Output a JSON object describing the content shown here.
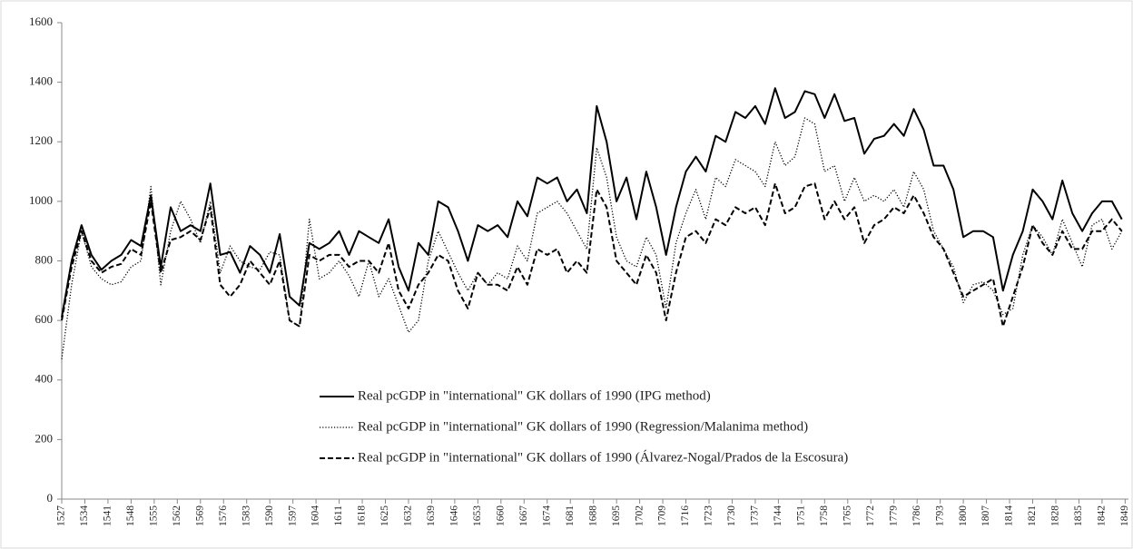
{
  "chart_data": {
    "type": "line",
    "xlim": [
      1527,
      1850
    ],
    "ylim": [
      0,
      1600
    ],
    "yticks": [
      0,
      200,
      400,
      600,
      800,
      1000,
      1200,
      1400,
      1600
    ],
    "xticks": [
      1527,
      1534,
      1541,
      1548,
      1555,
      1562,
      1569,
      1576,
      1583,
      1590,
      1597,
      1604,
      1611,
      1618,
      1625,
      1632,
      1639,
      1646,
      1653,
      1660,
      1667,
      1674,
      1681,
      1688,
      1695,
      1702,
      1709,
      1716,
      1723,
      1730,
      1737,
      1744,
      1751,
      1758,
      1765,
      1772,
      1779,
      1786,
      1793,
      1800,
      1807,
      1814,
      1821,
      1828,
      1835,
      1842,
      1849
    ],
    "legend": "lower center",
    "x": [
      1527,
      1530,
      1533,
      1536,
      1539,
      1542,
      1545,
      1548,
      1551,
      1554,
      1557,
      1560,
      1563,
      1566,
      1569,
      1572,
      1575,
      1578,
      1581,
      1584,
      1587,
      1590,
      1593,
      1596,
      1599,
      1602,
      1605,
      1608,
      1611,
      1614,
      1617,
      1620,
      1623,
      1626,
      1629,
      1632,
      1635,
      1638,
      1641,
      1644,
      1647,
      1650,
      1653,
      1656,
      1659,
      1662,
      1665,
      1668,
      1671,
      1674,
      1677,
      1680,
      1683,
      1686,
      1689,
      1692,
      1695,
      1698,
      1701,
      1704,
      1707,
      1710,
      1713,
      1716,
      1719,
      1722,
      1725,
      1728,
      1731,
      1734,
      1737,
      1740,
      1743,
      1746,
      1749,
      1752,
      1755,
      1758,
      1761,
      1764,
      1767,
      1770,
      1773,
      1776,
      1779,
      1782,
      1785,
      1788,
      1791,
      1794,
      1797,
      1800,
      1803,
      1806,
      1809,
      1812,
      1815,
      1818,
      1821,
      1824,
      1827,
      1830,
      1833,
      1836,
      1839,
      1842,
      1845,
      1848
    ],
    "series": [
      {
        "name": "Real pcGDP in \"international\" GK dollars of 1990 (IPG method)",
        "color": "#000000",
        "dash": "solid",
        "values": [
          610,
          800,
          920,
          820,
          770,
          800,
          820,
          870,
          850,
          1020,
          780,
          980,
          900,
          920,
          900,
          1060,
          820,
          830,
          760,
          850,
          820,
          760,
          890,
          680,
          650,
          860,
          840,
          860,
          900,
          820,
          900,
          880,
          860,
          940,
          780,
          700,
          860,
          820,
          1000,
          980,
          900,
          800,
          920,
          900,
          920,
          880,
          1000,
          950,
          1080,
          1060,
          1080,
          1000,
          1040,
          960,
          1320,
          1200,
          1000,
          1080,
          940,
          1100,
          980,
          820,
          980,
          1100,
          1150,
          1100,
          1220,
          1200,
          1300,
          1280,
          1320,
          1260,
          1380,
          1280,
          1300,
          1370,
          1360,
          1280,
          1360,
          1270,
          1280,
          1160,
          1210,
          1220,
          1260,
          1220,
          1310,
          1240,
          1120,
          1120,
          1040,
          880,
          900,
          900,
          880,
          700,
          820,
          900,
          1040,
          1000,
          940,
          1070,
          960,
          900,
          960,
          1000,
          1000,
          940
        ]
      },
      {
        "name": "Real pcGDP in \"international\" GK dollars of 1990 (Regression/Malanima method)",
        "color": "#000000",
        "dash": "dotted",
        "values": [
          470,
          720,
          900,
          780,
          740,
          720,
          730,
          780,
          800,
          1050,
          720,
          900,
          1000,
          940,
          860,
          1000,
          760,
          850,
          800,
          780,
          770,
          830,
          820,
          600,
          580,
          940,
          740,
          760,
          800,
          750,
          680,
          800,
          680,
          740,
          650,
          560,
          600,
          800,
          900,
          830,
          760,
          700,
          760,
          720,
          760,
          740,
          850,
          800,
          960,
          980,
          1000,
          960,
          900,
          840,
          1180,
          1080,
          880,
          800,
          780,
          880,
          820,
          640,
          860,
          960,
          1040,
          940,
          1080,
          1050,
          1140,
          1120,
          1100,
          1050,
          1200,
          1120,
          1150,
          1280,
          1260,
          1100,
          1120,
          1000,
          1080,
          1000,
          1020,
          1000,
          1040,
          980,
          1100,
          1040,
          900,
          840,
          780,
          660,
          720,
          730,
          700,
          620,
          640,
          820,
          920,
          880,
          820,
          940,
          860,
          780,
          920,
          940,
          840,
          900
        ]
      },
      {
        "name": "Real pcGDP in \"international\" GK dollars of 1990 (Álvarez-Nogal/Prados de la Escosura)",
        "color": "#000000",
        "dash": "dashed",
        "values": [
          600,
          780,
          900,
          800,
          760,
          780,
          790,
          840,
          820,
          1000,
          760,
          870,
          880,
          900,
          870,
          980,
          720,
          680,
          720,
          800,
          760,
          720,
          800,
          600,
          580,
          820,
          800,
          820,
          820,
          780,
          800,
          800,
          760,
          860,
          700,
          640,
          720,
          760,
          820,
          800,
          700,
          640,
          760,
          720,
          720,
          700,
          780,
          720,
          840,
          820,
          840,
          760,
          800,
          760,
          1040,
          980,
          800,
          760,
          720,
          820,
          760,
          600,
          760,
          880,
          900,
          860,
          940,
          920,
          980,
          960,
          980,
          920,
          1060,
          960,
          980,
          1050,
          1060,
          940,
          1000,
          940,
          980,
          860,
          920,
          940,
          980,
          960,
          1020,
          960,
          880,
          840,
          760,
          680,
          700,
          720,
          740,
          580,
          680,
          780,
          920,
          860,
          820,
          900,
          840,
          840,
          900,
          900,
          940,
          900
        ]
      }
    ]
  }
}
